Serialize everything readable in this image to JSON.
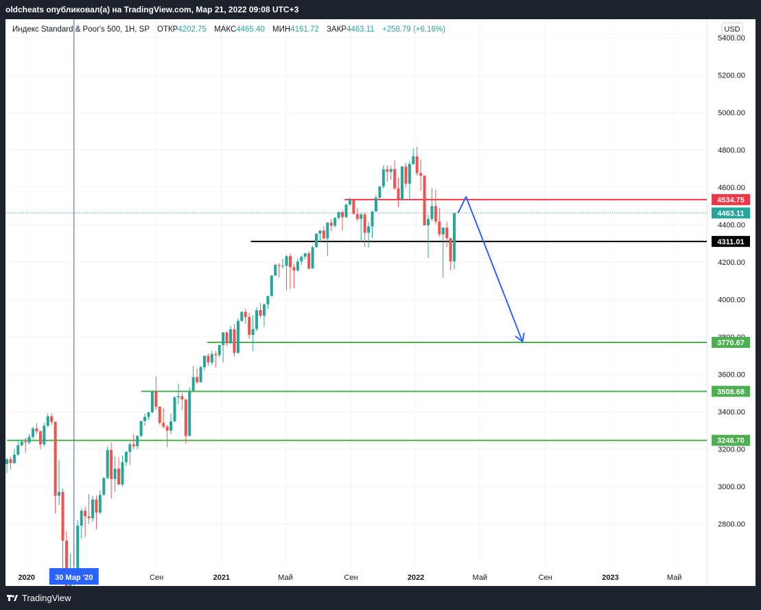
{
  "header": {
    "publish_line": "oldcheats опубликовал(а) на TradingView.com, Мар 21, 2022 09:08 UTC+3"
  },
  "legend": {
    "symbol": "Индекс Standard & Poor's 500, 1H, SP",
    "open_label": "ОТКР",
    "open_value": "4202.75",
    "high_label": "МАКС",
    "high_value": "4465.40",
    "low_label": "МИН",
    "low_value": "4161.72",
    "close_label": "ЗАКР",
    "close_value": "4463.11",
    "change": "+258.79 (+6.16%)"
  },
  "currency_button": "USD",
  "brand": {
    "name": "TradingView",
    "logo_icon": "tradingview-logo-icon"
  },
  "colors": {
    "up": "#26a69a",
    "down": "#ef5350",
    "resistance": "#f23645",
    "support": "#4caf50",
    "pivot": "#000000",
    "arrow": "#2962ff",
    "last_price": "#26a69a"
  },
  "chart_data": {
    "type": "candlestick",
    "title": "",
    "xlabel": "",
    "ylabel": "",
    "ylim": [
      2570,
      5500
    ],
    "y_ticks": [
      "2800.00",
      "3000.00",
      "3200.00",
      "3400.00",
      "3600.00",
      "3800.00",
      "4000.00",
      "4200.00",
      "4400.00",
      "4600.00",
      "4800.00",
      "5000.00",
      "5200.00",
      "5400.00"
    ],
    "x_ticks": [
      {
        "label": "2020",
        "date": "2020-01-01"
      },
      {
        "label": "Сен",
        "date": "2020-09-01"
      },
      {
        "label": "2021",
        "date": "2021-01-01"
      },
      {
        "label": "Май",
        "date": "2021-05-01"
      },
      {
        "label": "Сен",
        "date": "2021-09-01"
      },
      {
        "label": "2022",
        "date": "2022-01-01"
      },
      {
        "label": "Май",
        "date": "2022-05-01"
      },
      {
        "label": "Сен",
        "date": "2022-09-01"
      },
      {
        "label": "2023",
        "date": "2023-01-01"
      },
      {
        "label": "Май",
        "date": "2023-05-01"
      }
    ],
    "xlim": [
      "2019-11-25",
      "2023-07-01"
    ],
    "crosshair": {
      "date": "2020-03-30",
      "label": "30 Мар '20"
    },
    "last_price": {
      "value": 4463.11,
      "label": "4463.11"
    },
    "levels": [
      {
        "value": 4534.75,
        "label": "4534.75",
        "color": "#f23645",
        "from": "2021-08-20"
      },
      {
        "value": 4311.01,
        "label": "4311.01",
        "color": "#000000",
        "from": "2021-02-25"
      },
      {
        "value": 3770.67,
        "label": "3770.67",
        "color": "#4caf50",
        "from": "2020-12-05"
      },
      {
        "value": 3508.68,
        "label": "3508.68",
        "color": "#4caf50",
        "from": "2020-08-03"
      },
      {
        "value": 3246.7,
        "label": "3246.70",
        "color": "#4caf50",
        "from": "2019-11-25"
      }
    ],
    "projection_arrow": [
      {
        "date": "2022-03-21",
        "value": 4463
      },
      {
        "date": "2022-04-05",
        "value": 4550
      },
      {
        "date": "2022-07-20",
        "value": 3775
      }
    ],
    "candles": [
      {
        "d": "2019-11-25",
        "o": 3120,
        "h": 3154,
        "l": 3070,
        "c": 3145
      },
      {
        "d": "2019-12-02",
        "o": 3145,
        "h": 3160,
        "l": 3090,
        "c": 3125
      },
      {
        "d": "2019-12-09",
        "o": 3125,
        "h": 3200,
        "l": 3120,
        "c": 3170
      },
      {
        "d": "2019-12-16",
        "o": 3170,
        "h": 3250,
        "l": 3165,
        "c": 3220
      },
      {
        "d": "2019-12-23",
        "o": 3220,
        "h": 3247,
        "l": 3215,
        "c": 3240
      },
      {
        "d": "2019-12-30",
        "o": 3240,
        "h": 3260,
        "l": 3180,
        "c": 3235
      },
      {
        "d": "2020-01-06",
        "o": 3235,
        "h": 3280,
        "l": 3225,
        "c": 3265
      },
      {
        "d": "2020-01-13",
        "o": 3265,
        "h": 3320,
        "l": 3255,
        "c": 3310
      },
      {
        "d": "2020-01-20",
        "o": 3310,
        "h": 3340,
        "l": 3280,
        "c": 3295
      },
      {
        "d": "2020-01-27",
        "o": 3295,
        "h": 3300,
        "l": 3200,
        "c": 3225
      },
      {
        "d": "2020-02-03",
        "o": 3225,
        "h": 3340,
        "l": 3215,
        "c": 3325
      },
      {
        "d": "2020-02-10",
        "o": 3325,
        "h": 3390,
        "l": 3315,
        "c": 3375
      },
      {
        "d": "2020-02-17",
        "o": 3375,
        "h": 3393,
        "l": 3330,
        "c": 3345
      },
      {
        "d": "2020-02-24",
        "o": 3345,
        "h": 3350,
        "l": 2855,
        "c": 2950
      },
      {
        "d": "2020-03-02",
        "o": 2950,
        "h": 3140,
        "l": 2900,
        "c": 2970
      },
      {
        "d": "2020-03-09",
        "o": 2970,
        "h": 2990,
        "l": 2480,
        "c": 2710
      },
      {
        "d": "2020-03-16",
        "o": 2710,
        "h": 2760,
        "l": 2280,
        "c": 2300
      },
      {
        "d": "2020-03-23",
        "o": 2300,
        "h": 2640,
        "l": 2190,
        "c": 2540
      },
      {
        "d": "2020-03-30",
        "o": 2540,
        "h": 2680,
        "l": 2440,
        "c": 2490
      },
      {
        "d": "2020-04-06",
        "o": 2490,
        "h": 2820,
        "l": 2480,
        "c": 2790
      },
      {
        "d": "2020-04-13",
        "o": 2790,
        "h": 2880,
        "l": 2720,
        "c": 2870
      },
      {
        "d": "2020-04-20",
        "o": 2870,
        "h": 2890,
        "l": 2730,
        "c": 2840
      },
      {
        "d": "2020-04-27",
        "o": 2840,
        "h": 2960,
        "l": 2800,
        "c": 2830
      },
      {
        "d": "2020-05-04",
        "o": 2830,
        "h": 2950,
        "l": 2810,
        "c": 2930
      },
      {
        "d": "2020-05-11",
        "o": 2930,
        "h": 2950,
        "l": 2770,
        "c": 2860
      },
      {
        "d": "2020-05-18",
        "o": 2860,
        "h": 2980,
        "l": 2850,
        "c": 2955
      },
      {
        "d": "2020-05-25",
        "o": 2955,
        "h": 3050,
        "l": 2950,
        "c": 3045
      },
      {
        "d": "2020-06-01",
        "o": 3045,
        "h": 3215,
        "l": 3040,
        "c": 3195
      },
      {
        "d": "2020-06-08",
        "o": 3195,
        "h": 3235,
        "l": 2935,
        "c": 3040
      },
      {
        "d": "2020-06-15",
        "o": 3040,
        "h": 3160,
        "l": 2970,
        "c": 3095
      },
      {
        "d": "2020-06-22",
        "o": 3095,
        "h": 3155,
        "l": 3010,
        "c": 3010
      },
      {
        "d": "2020-06-29",
        "o": 3010,
        "h": 3165,
        "l": 3000,
        "c": 3130
      },
      {
        "d": "2020-07-06",
        "o": 3130,
        "h": 3190,
        "l": 3110,
        "c": 3185
      },
      {
        "d": "2020-07-13",
        "o": 3185,
        "h": 3235,
        "l": 3115,
        "c": 3225
      },
      {
        "d": "2020-07-20",
        "o": 3225,
        "h": 3280,
        "l": 3200,
        "c": 3215
      },
      {
        "d": "2020-07-27",
        "o": 3215,
        "h": 3275,
        "l": 3200,
        "c": 3270
      },
      {
        "d": "2020-08-03",
        "o": 3270,
        "h": 3352,
        "l": 3265,
        "c": 3350
      },
      {
        "d": "2020-08-10",
        "o": 3350,
        "h": 3390,
        "l": 3325,
        "c": 3372
      },
      {
        "d": "2020-08-17",
        "o": 3372,
        "h": 3400,
        "l": 3355,
        "c": 3397
      },
      {
        "d": "2020-08-24",
        "o": 3397,
        "h": 3510,
        "l": 3390,
        "c": 3508
      },
      {
        "d": "2020-08-31",
        "o": 3508,
        "h": 3588,
        "l": 3410,
        "c": 3426
      },
      {
        "d": "2020-09-07",
        "o": 3426,
        "h": 3430,
        "l": 3330,
        "c": 3340
      },
      {
        "d": "2020-09-14",
        "o": 3340,
        "h": 3420,
        "l": 3310,
        "c": 3320
      },
      {
        "d": "2020-09-21",
        "o": 3320,
        "h": 3330,
        "l": 3210,
        "c": 3298
      },
      {
        "d": "2020-09-28",
        "o": 3298,
        "h": 3390,
        "l": 3280,
        "c": 3348
      },
      {
        "d": "2020-10-05",
        "o": 3348,
        "h": 3480,
        "l": 3345,
        "c": 3477
      },
      {
        "d": "2020-10-12",
        "o": 3477,
        "h": 3550,
        "l": 3440,
        "c": 3483
      },
      {
        "d": "2020-10-19",
        "o": 3483,
        "h": 3500,
        "l": 3410,
        "c": 3465
      },
      {
        "d": "2020-10-26",
        "o": 3465,
        "h": 3470,
        "l": 3230,
        "c": 3270
      },
      {
        "d": "2020-11-02",
        "o": 3270,
        "h": 3530,
        "l": 3270,
        "c": 3510
      },
      {
        "d": "2020-11-09",
        "o": 3510,
        "h": 3645,
        "l": 3510,
        "c": 3585
      },
      {
        "d": "2020-11-16",
        "o": 3585,
        "h": 3630,
        "l": 3550,
        "c": 3558
      },
      {
        "d": "2020-11-23",
        "o": 3558,
        "h": 3645,
        "l": 3555,
        "c": 3638
      },
      {
        "d": "2020-11-30",
        "o": 3638,
        "h": 3700,
        "l": 3620,
        "c": 3699
      },
      {
        "d": "2020-12-07",
        "o": 3699,
        "h": 3712,
        "l": 3645,
        "c": 3663
      },
      {
        "d": "2020-12-14",
        "o": 3663,
        "h": 3726,
        "l": 3650,
        "c": 3709
      },
      {
        "d": "2020-12-21",
        "o": 3709,
        "h": 3725,
        "l": 3636,
        "c": 3703
      },
      {
        "d": "2020-12-28",
        "o": 3703,
        "h": 3760,
        "l": 3690,
        "c": 3756
      },
      {
        "d": "2021-01-04",
        "o": 3756,
        "h": 3826,
        "l": 3662,
        "c": 3824
      },
      {
        "d": "2021-01-11",
        "o": 3824,
        "h": 3830,
        "l": 3750,
        "c": 3768
      },
      {
        "d": "2021-01-18",
        "o": 3768,
        "h": 3860,
        "l": 3760,
        "c": 3841
      },
      {
        "d": "2021-01-25",
        "o": 3841,
        "h": 3870,
        "l": 3694,
        "c": 3714
      },
      {
        "d": "2021-02-01",
        "o": 3714,
        "h": 3900,
        "l": 3710,
        "c": 3886
      },
      {
        "d": "2021-02-08",
        "o": 3886,
        "h": 3937,
        "l": 3880,
        "c": 3934
      },
      {
        "d": "2021-02-15",
        "o": 3934,
        "h": 3950,
        "l": 3870,
        "c": 3906
      },
      {
        "d": "2021-02-22",
        "o": 3906,
        "h": 3930,
        "l": 3790,
        "c": 3811
      },
      {
        "d": "2021-03-01",
        "o": 3811,
        "h": 3915,
        "l": 3723,
        "c": 3842
      },
      {
        "d": "2021-03-08",
        "o": 3842,
        "h": 3960,
        "l": 3830,
        "c": 3943
      },
      {
        "d": "2021-03-15",
        "o": 3943,
        "h": 3983,
        "l": 3900,
        "c": 3913
      },
      {
        "d": "2021-03-22",
        "o": 3913,
        "h": 3978,
        "l": 3853,
        "c": 3974
      },
      {
        "d": "2021-03-29",
        "o": 3974,
        "h": 4020,
        "l": 3950,
        "c": 4019
      },
      {
        "d": "2021-04-05",
        "o": 4019,
        "h": 4130,
        "l": 4015,
        "c": 4128
      },
      {
        "d": "2021-04-12",
        "o": 4128,
        "h": 4191,
        "l": 4125,
        "c": 4185
      },
      {
        "d": "2021-04-19",
        "o": 4185,
        "h": 4195,
        "l": 4118,
        "c": 4180
      },
      {
        "d": "2021-04-26",
        "o": 4180,
        "h": 4218,
        "l": 4165,
        "c": 4181
      },
      {
        "d": "2021-05-03",
        "o": 4181,
        "h": 4238,
        "l": 4050,
        "c": 4232
      },
      {
        "d": "2021-05-10",
        "o": 4232,
        "h": 4245,
        "l": 4056,
        "c": 4173
      },
      {
        "d": "2021-05-17",
        "o": 4173,
        "h": 4190,
        "l": 4061,
        "c": 4155
      },
      {
        "d": "2021-05-24",
        "o": 4155,
        "h": 4220,
        "l": 4150,
        "c": 4204
      },
      {
        "d": "2021-05-31",
        "o": 4204,
        "h": 4235,
        "l": 4185,
        "c": 4229
      },
      {
        "d": "2021-06-07",
        "o": 4229,
        "h": 4250,
        "l": 4215,
        "c": 4247
      },
      {
        "d": "2021-06-14",
        "o": 4247,
        "h": 4260,
        "l": 4160,
        "c": 4166
      },
      {
        "d": "2021-06-21",
        "o": 4166,
        "h": 4290,
        "l": 4165,
        "c": 4280
      },
      {
        "d": "2021-06-28",
        "o": 4280,
        "h": 4355,
        "l": 4275,
        "c": 4352
      },
      {
        "d": "2021-07-05",
        "o": 4352,
        "h": 4371,
        "l": 4310,
        "c": 4369
      },
      {
        "d": "2021-07-12",
        "o": 4369,
        "h": 4393,
        "l": 4320,
        "c": 4327
      },
      {
        "d": "2021-07-19",
        "o": 4327,
        "h": 4415,
        "l": 4233,
        "c": 4411
      },
      {
        "d": "2021-07-26",
        "o": 4411,
        "h": 4430,
        "l": 4367,
        "c": 4395
      },
      {
        "d": "2021-08-02",
        "o": 4395,
        "h": 4440,
        "l": 4385,
        "c": 4437
      },
      {
        "d": "2021-08-09",
        "o": 4437,
        "h": 4470,
        "l": 4430,
        "c": 4468
      },
      {
        "d": "2021-08-16",
        "o": 4468,
        "h": 4480,
        "l": 4368,
        "c": 4441
      },
      {
        "d": "2021-08-23",
        "o": 4441,
        "h": 4510,
        "l": 4435,
        "c": 4509
      },
      {
        "d": "2021-08-30",
        "o": 4509,
        "h": 4545,
        "l": 4500,
        "c": 4535
      },
      {
        "d": "2021-09-06",
        "o": 4535,
        "h": 4540,
        "l": 4455,
        "c": 4458
      },
      {
        "d": "2021-09-13",
        "o": 4458,
        "h": 4490,
        "l": 4420,
        "c": 4432
      },
      {
        "d": "2021-09-20",
        "o": 4432,
        "h": 4466,
        "l": 4306,
        "c": 4455
      },
      {
        "d": "2021-09-27",
        "o": 4455,
        "h": 4465,
        "l": 4280,
        "c": 4357
      },
      {
        "d": "2021-10-04",
        "o": 4357,
        "h": 4415,
        "l": 4278,
        "c": 4391
      },
      {
        "d": "2021-10-11",
        "o": 4391,
        "h": 4475,
        "l": 4330,
        "c": 4471
      },
      {
        "d": "2021-10-18",
        "o": 4471,
        "h": 4560,
        "l": 4470,
        "c": 4545
      },
      {
        "d": "2021-10-25",
        "o": 4545,
        "h": 4608,
        "l": 4540,
        "c": 4605
      },
      {
        "d": "2021-11-01",
        "o": 4605,
        "h": 4718,
        "l": 4595,
        "c": 4697
      },
      {
        "d": "2021-11-08",
        "o": 4697,
        "h": 4718,
        "l": 4630,
        "c": 4683
      },
      {
        "d": "2021-11-15",
        "o": 4683,
        "h": 4715,
        "l": 4640,
        "c": 4698
      },
      {
        "d": "2021-11-22",
        "o": 4698,
        "h": 4745,
        "l": 4585,
        "c": 4595
      },
      {
        "d": "2021-11-29",
        "o": 4595,
        "h": 4652,
        "l": 4495,
        "c": 4538
      },
      {
        "d": "2021-12-06",
        "o": 4538,
        "h": 4713,
        "l": 4530,
        "c": 4712
      },
      {
        "d": "2021-12-13",
        "o": 4712,
        "h": 4732,
        "l": 4600,
        "c": 4620
      },
      {
        "d": "2021-12-20",
        "o": 4620,
        "h": 4740,
        "l": 4532,
        "c": 4725
      },
      {
        "d": "2021-12-27",
        "o": 4725,
        "h": 4808,
        "l": 4720,
        "c": 4766
      },
      {
        "d": "2022-01-03",
        "o": 4766,
        "h": 4818,
        "l": 4662,
        "c": 4677
      },
      {
        "d": "2022-01-10",
        "o": 4677,
        "h": 4749,
        "l": 4582,
        "c": 4662
      },
      {
        "d": "2022-01-17",
        "o": 4662,
        "h": 4665,
        "l": 4395,
        "c": 4397
      },
      {
        "d": "2022-01-24",
        "o": 4397,
        "h": 4453,
        "l": 4222,
        "c": 4431
      },
      {
        "d": "2022-01-31",
        "o": 4431,
        "h": 4595,
        "l": 4420,
        "c": 4500
      },
      {
        "d": "2022-02-07",
        "o": 4500,
        "h": 4588,
        "l": 4401,
        "c": 4418
      },
      {
        "d": "2022-02-14",
        "o": 4418,
        "h": 4490,
        "l": 4335,
        "c": 4349
      },
      {
        "d": "2022-02-21",
        "o": 4349,
        "h": 4385,
        "l": 4115,
        "c": 4385
      },
      {
        "d": "2022-02-28",
        "o": 4385,
        "h": 4416,
        "l": 4280,
        "c": 4329
      },
      {
        "d": "2022-03-07",
        "o": 4329,
        "h": 4330,
        "l": 4157,
        "c": 4204
      },
      {
        "d": "2022-03-14",
        "o": 4204,
        "h": 4465,
        "l": 4162,
        "c": 4463
      }
    ]
  }
}
